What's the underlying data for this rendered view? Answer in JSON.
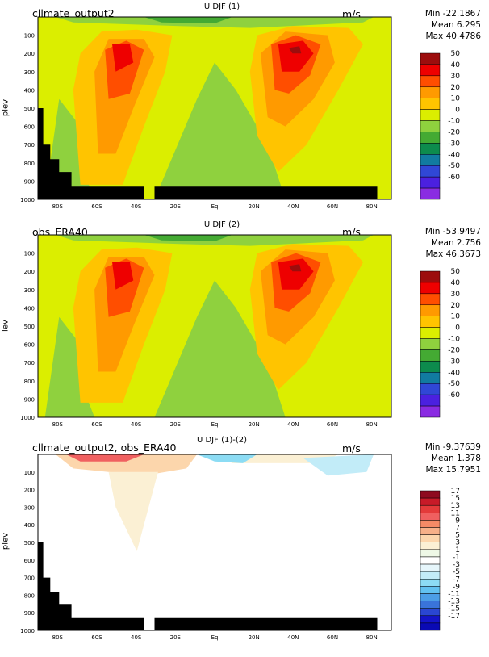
{
  "chart_data": [
    {
      "type": "contour",
      "case_label": "cllmate_output2",
      "title": "U DJF (1)",
      "units": "m/s",
      "ylabel": "plev",
      "stats": {
        "min": "Min -22.1867",
        "mean": "Mean 6.295",
        "max": "Max 40.4786"
      },
      "y_ticks": [
        "100",
        "200",
        "300",
        "400",
        "500",
        "600",
        "700",
        "800",
        "900",
        "1000"
      ],
      "x_ticks": [
        "80S",
        "60S",
        "40S",
        "20S",
        "Eq",
        "20N",
        "40N",
        "60N",
        "80N"
      ],
      "colorbar_labels": [
        "50",
        "40",
        "30",
        "20",
        "10",
        "0",
        "-10",
        "-20",
        "-30",
        "-40",
        "-50",
        "-60"
      ],
      "colorbar_colors": [
        "#9c0d0d",
        "#ee0000",
        "#ff4e00",
        "#ff9a00",
        "#ffc400",
        "#dbee00",
        "#8fd13e",
        "#44aa33",
        "#0d8b4d",
        "#117ba0",
        "#3047d6",
        "#4b20e0",
        "#8a2be2"
      ],
      "ylim": [
        1000,
        0
      ],
      "xlim": [
        -90,
        90
      ],
      "terrain_mask": true
    },
    {
      "type": "contour",
      "case_label": "obs_ERA40",
      "title": "U DJF (2)",
      "units": "m/s",
      "ylabel": "lev",
      "stats": {
        "min": "Min -53.9497",
        "mean": "Mean 2.756",
        "max": "Max 46.3673"
      },
      "y_ticks": [
        "100",
        "200",
        "300",
        "400",
        "500",
        "600",
        "700",
        "800",
        "900",
        "1000"
      ],
      "x_ticks": [
        "80S",
        "60S",
        "40S",
        "20S",
        "Eq",
        "20N",
        "40N",
        "60N",
        "80N"
      ],
      "colorbar_labels": [
        "50",
        "40",
        "30",
        "20",
        "10",
        "0",
        "-10",
        "-20",
        "-30",
        "-40",
        "-50",
        "-60"
      ],
      "colorbar_colors": [
        "#9c0d0d",
        "#ee0000",
        "#ff4e00",
        "#ff9a00",
        "#ffc400",
        "#dbee00",
        "#8fd13e",
        "#44aa33",
        "#0d8b4d",
        "#117ba0",
        "#3047d6",
        "#4b20e0",
        "#8a2be2"
      ],
      "ylim": [
        1000,
        0
      ],
      "xlim": [
        -90,
        90
      ],
      "terrain_mask": false
    },
    {
      "type": "contour",
      "case_label": "cllmate_output2, obs_ERA40",
      "title": "U DJF (1)-(2)",
      "units": "m/s",
      "ylabel": "plev",
      "stats": {
        "min": "Min -9.37639",
        "mean": "Mean 1.378",
        "max": "Max 15.7951"
      },
      "y_ticks": [
        "100",
        "200",
        "300",
        "400",
        "500",
        "600",
        "700",
        "800",
        "900",
        "1000"
      ],
      "x_ticks": [
        "80S",
        "60S",
        "40S",
        "20S",
        "Eq",
        "20N",
        "40N",
        "60N",
        "80N"
      ],
      "colorbar_labels": [
        "17",
        "15",
        "13",
        "11",
        "9",
        "7",
        "5",
        "3",
        "1",
        "-1",
        "-3",
        "-5",
        "-7",
        "-9",
        "-11",
        "-13",
        "-15",
        "-17"
      ],
      "colorbar_colors": [
        "#8e0b1f",
        "#c81a28",
        "#e43a3a",
        "#f06060",
        "#f48a66",
        "#f7b088",
        "#fcd6ac",
        "#fbf0d4",
        "#eef8e6",
        "#ffffff",
        "#e6f6fb",
        "#c2ecf8",
        "#8cdcf4",
        "#62c2f0",
        "#4c9ee6",
        "#3a74da",
        "#2a46d2",
        "#1414c8",
        "#0a0ab4"
      ],
      "ylim": [
        1000,
        0
      ],
      "xlim": [
        -90,
        90
      ],
      "terrain_mask": true
    }
  ]
}
